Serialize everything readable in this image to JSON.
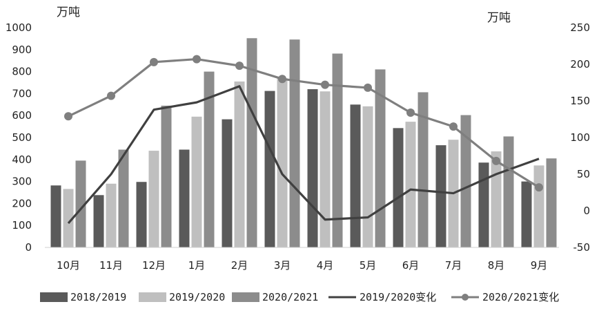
{
  "chart_data": {
    "type": "bar",
    "title": "",
    "left_unit": "万吨",
    "right_unit": "万吨",
    "categories": [
      "10月",
      "11月",
      "12月",
      "1月",
      "2月",
      "3月",
      "4月",
      "5月",
      "6月",
      "7月",
      "8月",
      "9月"
    ],
    "y_left": {
      "min": 0,
      "max": 1000,
      "ticks": [
        0,
        100,
        200,
        300,
        400,
        500,
        600,
        700,
        800,
        900,
        1000
      ]
    },
    "y_right": {
      "min": -50,
      "max": 250,
      "ticks": [
        -50,
        0,
        50,
        100,
        150,
        200,
        250
      ]
    },
    "bar_series": [
      {
        "name": "2018/2019",
        "color": "#5a5a5a",
        "values": [
          282,
          238,
          298,
          445,
          583,
          712,
          720,
          650,
          543,
          465,
          386,
          300
        ]
      },
      {
        "name": "2019/2020",
        "color": "#bfbfbf",
        "values": [
          266,
          290,
          440,
          595,
          755,
          770,
          710,
          642,
          572,
          490,
          437,
          373
        ]
      },
      {
        "name": "2020/2021",
        "color": "#8c8c8c",
        "values": [
          395,
          445,
          645,
          800,
          952,
          946,
          882,
          810,
          706,
          602,
          505,
          405
        ]
      }
    ],
    "line_series": [
      {
        "name": "2019/2020变化",
        "color": "#404040",
        "axis": "right",
        "markers": false,
        "values": [
          -17,
          50,
          138,
          148,
          170,
          50,
          -12,
          -9,
          29,
          24,
          50,
          71
        ]
      },
      {
        "name": "2020/2021变化",
        "color": "#7f7f7f",
        "axis": "right",
        "markers": true,
        "values": [
          129,
          157,
          203,
          207,
          198,
          180,
          172,
          168,
          134,
          115,
          68,
          32
        ]
      }
    ],
    "legend_position": "bottom",
    "grid": false
  }
}
